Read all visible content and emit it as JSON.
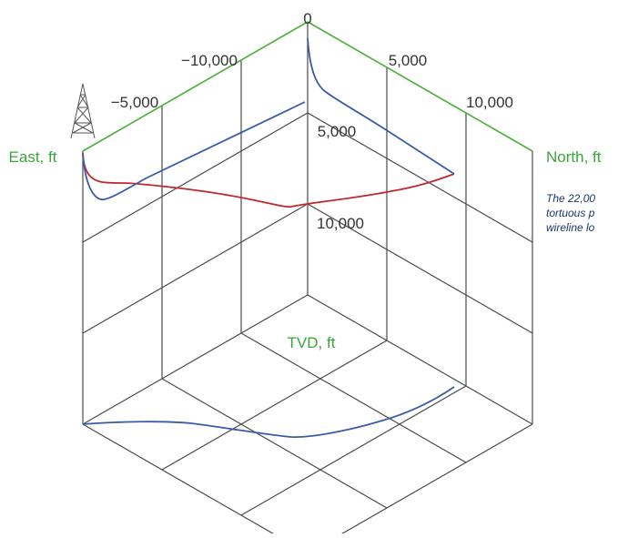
{
  "axes": {
    "east_label": "East, ft",
    "north_label": "North, ft",
    "tvd_label": "TVD, ft"
  },
  "ticks": {
    "top": "0",
    "east_10000": "−10,000",
    "east_5000": "−5,000",
    "north_5000": "5,000",
    "north_10000": "10,000",
    "tvd_5000": "5,000",
    "tvd_10000": "10,000"
  },
  "caption": {
    "line1": "The 22,00",
    "line2": "tortuous p",
    "line3": "wireline lo"
  },
  "colors": {
    "axis_green": "#4caf3c",
    "well_path_blue": "#3a5ca8",
    "well_path_red": "#c0282e",
    "grid": "#4b4b4b"
  },
  "icons": {
    "derrick": "drilling-rig-icon"
  }
}
